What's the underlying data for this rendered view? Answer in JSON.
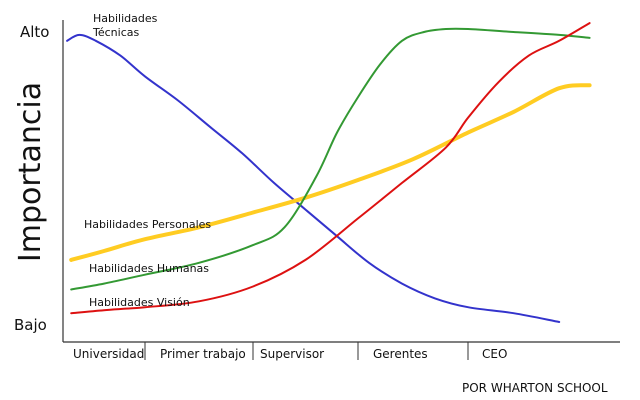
{
  "chart_data": {
    "type": "line",
    "title": "",
    "ylabel": "Importancia",
    "xlabel": "",
    "yticks": [
      "Bajo",
      "Alto"
    ],
    "ylim": [
      0,
      100
    ],
    "categories": [
      "Universidad",
      "Primer trabajo",
      "Supervisor",
      "Gerentes",
      "CEO"
    ],
    "grid": false,
    "series": [
      {
        "name": "Habilidades Técnicas",
        "color": "#3333cc",
        "x": [
          0.05,
          0.2,
          0.4,
          0.7,
          1.0,
          1.3,
          1.6,
          1.9,
          2.2,
          2.5,
          2.8,
          3.1,
          3.4,
          3.7,
          4.0,
          4.3,
          4.6
        ],
        "values": [
          96,
          98,
          96,
          91,
          84,
          76,
          67,
          58,
          48,
          39,
          30,
          21,
          14,
          9,
          6,
          4,
          1
        ]
      },
      {
        "name": "Habilidades Personales",
        "color": "#ffcc22",
        "x": [
          0.1,
          0.5,
          1.0,
          1.5,
          2.0,
          2.5,
          3.0,
          3.5,
          4.0,
          4.3,
          4.6,
          4.8
        ],
        "values": [
          22,
          25,
          29,
          33,
          38,
          43,
          49,
          56,
          65,
          72,
          80,
          81
        ]
      },
      {
        "name": "Habilidades Humanas",
        "color": "#339933",
        "x": [
          0.1,
          0.5,
          1.0,
          1.5,
          2.0,
          2.3,
          2.6,
          2.8,
          3.0,
          3.2,
          3.4,
          3.6,
          3.8,
          4.0,
          4.3,
          4.6,
          4.8
        ],
        "values": [
          12,
          14,
          17,
          21,
          27,
          33,
          50,
          65,
          77,
          88,
          96,
          99,
          100,
          100,
          99,
          98,
          97
        ]
      },
      {
        "name": "Habilidades Visión",
        "color": "#dd1111",
        "x": [
          0.1,
          0.5,
          1.0,
          1.5,
          2.0,
          2.5,
          3.0,
          3.4,
          3.8,
          4.0,
          4.2,
          4.4,
          4.6,
          4.8
        ],
        "values": [
          4,
          5,
          6,
          8,
          13,
          22,
          36,
          48,
          60,
          70,
          82,
          91,
          96,
          102
        ]
      }
    ],
    "source": "POR WHARTON SCHOOL"
  }
}
